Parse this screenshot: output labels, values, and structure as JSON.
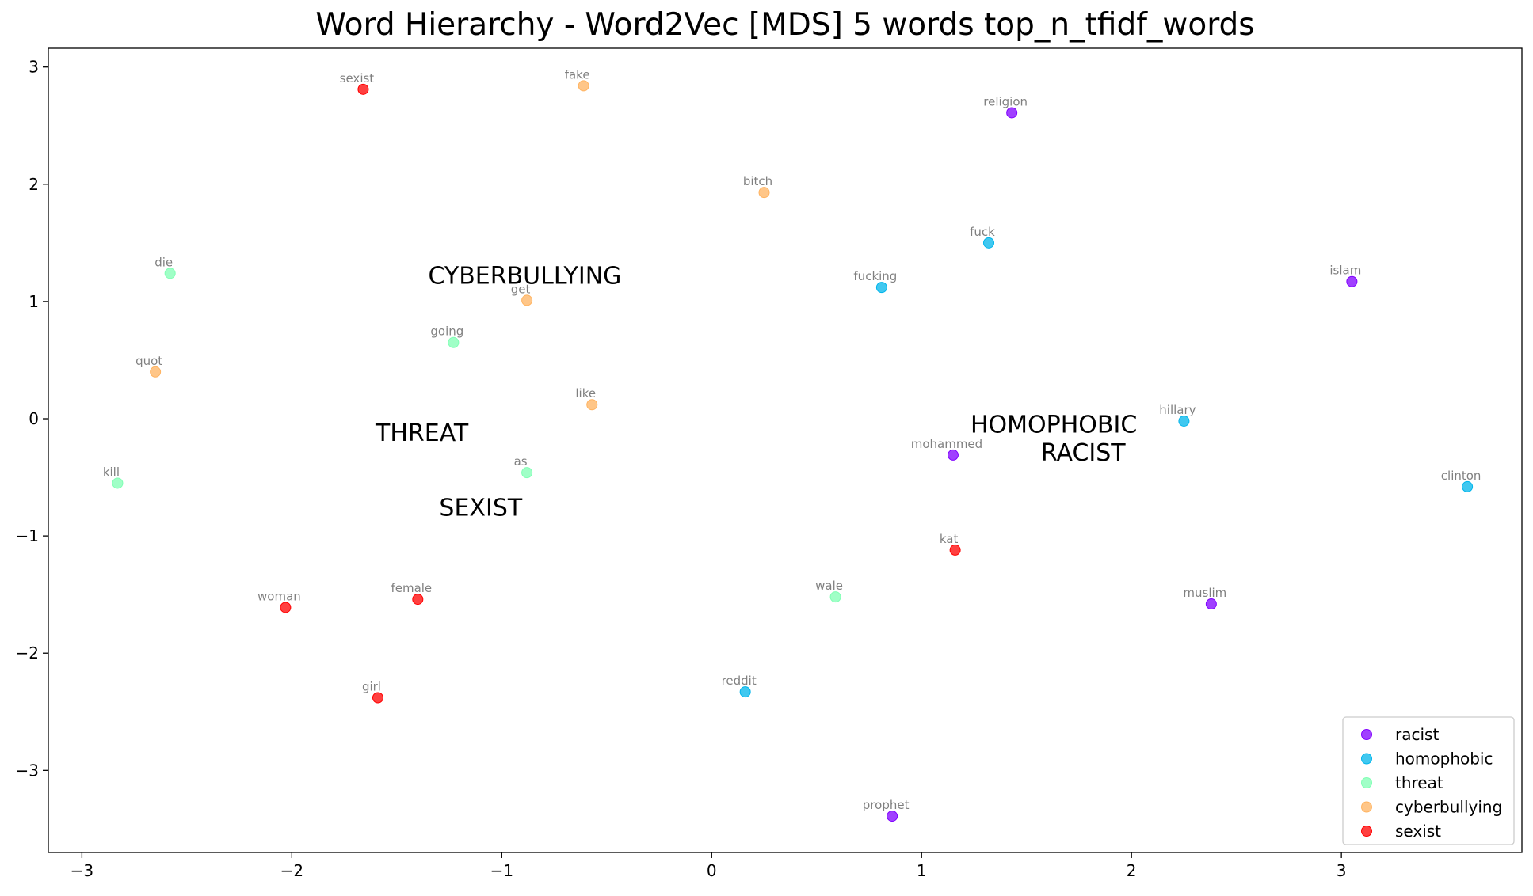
{
  "chart_data": {
    "type": "scatter",
    "title": "Word Hierarchy - Word2Vec [MDS] 5 words top_n_tfidf_words",
    "xlabel": "",
    "ylabel": "",
    "xlim": [
      -3.16,
      3.86
    ],
    "ylim": [
      -3.7,
      3.16
    ],
    "xticks": [
      -3,
      -2,
      -1,
      0,
      1,
      2,
      3
    ],
    "xtick_labels": [
      "−3",
      "−2",
      "−1",
      "0",
      "1",
      "2",
      "3"
    ],
    "yticks": [
      3,
      2,
      1,
      0,
      -1,
      -2,
      -3
    ],
    "ytick_labels": [
      "3",
      "2",
      "1",
      "0",
      "−1",
      "−2",
      "−3"
    ],
    "grid": false,
    "legend_position": "lower right",
    "series": [
      {
        "name": "racist",
        "color": "#8000ff",
        "points": [
          {
            "word": "religion",
            "x": 1.43,
            "y": 2.61
          },
          {
            "word": "islam",
            "x": 3.05,
            "y": 1.17
          },
          {
            "word": "mohammed",
            "x": 1.15,
            "y": -0.31
          },
          {
            "word": "muslim",
            "x": 2.38,
            "y": -1.58
          },
          {
            "word": "prophet",
            "x": 0.86,
            "y": -3.39
          }
        ]
      },
      {
        "name": "homophobic",
        "color": "#00b5eb",
        "points": [
          {
            "word": "fuck",
            "x": 1.32,
            "y": 1.5
          },
          {
            "word": "fucking",
            "x": 0.81,
            "y": 1.12
          },
          {
            "word": "hillary",
            "x": 2.25,
            "y": -0.02
          },
          {
            "word": "clinton",
            "x": 3.6,
            "y": -0.58
          },
          {
            "word": "reddit",
            "x": 0.16,
            "y": -2.33
          }
        ]
      },
      {
        "name": "threat",
        "color": "#80ffb4",
        "points": [
          {
            "word": "die",
            "x": -2.58,
            "y": 1.24
          },
          {
            "word": "going",
            "x": -1.23,
            "y": 0.65
          },
          {
            "word": "as",
            "x": -0.88,
            "y": -0.46
          },
          {
            "word": "kill",
            "x": -2.83,
            "y": -0.55
          },
          {
            "word": "wale",
            "x": 0.59,
            "y": -1.52
          }
        ]
      },
      {
        "name": "cyberbullying",
        "color": "#ffb360",
        "points": [
          {
            "word": "fake",
            "x": -0.61,
            "y": 2.84
          },
          {
            "word": "bitch",
            "x": 0.25,
            "y": 1.93
          },
          {
            "word": "get",
            "x": -0.88,
            "y": 1.01
          },
          {
            "word": "quot",
            "x": -2.65,
            "y": 0.4
          },
          {
            "word": "like",
            "x": -0.57,
            "y": 0.12
          }
        ]
      },
      {
        "name": "sexist",
        "color": "#ff0000",
        "points": [
          {
            "word": "sexist",
            "x": -1.66,
            "y": 2.81
          },
          {
            "word": "kat",
            "x": 1.16,
            "y": -1.12
          },
          {
            "word": "female",
            "x": -1.4,
            "y": -1.54
          },
          {
            "word": "woman",
            "x": -2.03,
            "y": -1.61
          },
          {
            "word": "girl",
            "x": -1.59,
            "y": -2.38
          }
        ]
      }
    ],
    "category_labels": [
      {
        "text": "CYBERBULLYING",
        "x": -0.89,
        "y": 1.22
      },
      {
        "text": "THREAT",
        "x": -1.38,
        "y": -0.12
      },
      {
        "text": "SEXIST",
        "x": -1.1,
        "y": -0.76
      },
      {
        "text": "HOMOPHOBIC",
        "x": 1.63,
        "y": -0.05
      },
      {
        "text": "RACIST",
        "x": 1.77,
        "y": -0.29
      }
    ]
  }
}
